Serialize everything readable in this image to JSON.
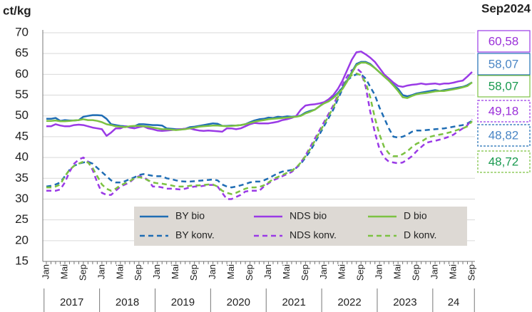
{
  "chart_data": {
    "type": "line",
    "y_label": "ct/kg",
    "annotation": "Sep2024",
    "categories": [
      "Jan",
      null,
      null,
      null,
      "Mai",
      null,
      null,
      null,
      "Sep",
      null,
      null,
      null,
      "Jan",
      null,
      null,
      null,
      "Mai",
      null,
      null,
      null,
      "Sep",
      null,
      null,
      null,
      "Jan",
      null,
      null,
      null,
      "Mai",
      null,
      null,
      null,
      "Sep",
      null,
      null,
      null,
      "Jan",
      null,
      null,
      null,
      "Mai",
      null,
      null,
      null,
      "Sep",
      null,
      null,
      null,
      "Jan",
      null,
      null,
      null,
      "Mai",
      null,
      null,
      null,
      "Sep",
      null,
      null,
      null,
      "Jan",
      null,
      null,
      null,
      "Mai",
      null,
      null,
      null,
      "Sep",
      null,
      null,
      null,
      "Jan",
      null,
      null,
      null,
      "Mai",
      null,
      null,
      null,
      "Sep",
      null,
      null,
      null,
      "Jan",
      null,
      null,
      null,
      "Mai",
      null,
      null,
      null,
      "Sep"
    ],
    "year_labels": [
      "2017",
      "2018",
      "2019",
      "2020",
      "2021",
      "2022",
      "2023",
      "24"
    ],
    "ylim": [
      15,
      70
    ],
    "yticks": [
      15,
      20,
      25,
      30,
      35,
      40,
      45,
      50,
      55,
      60,
      65,
      70
    ],
    "grid": true,
    "series": [
      {
        "name": "BY bio",
        "color": "#1f6db4",
        "dashed": false,
        "end_label": "58,07",
        "values": [
          49.3,
          49.3,
          49.5,
          48.8,
          49.0,
          48.9,
          48.9,
          49.0,
          49.8,
          50.0,
          50.2,
          50.2,
          50.1,
          49.3,
          48.0,
          47.8,
          47.6,
          47.5,
          47.4,
          47.5,
          48.0,
          48.0,
          47.9,
          47.8,
          47.8,
          47.7,
          47.0,
          46.9,
          46.8,
          46.8,
          46.9,
          47.3,
          47.4,
          47.6,
          47.8,
          48.0,
          48.2,
          48.1,
          47.6,
          47.6,
          47.7,
          47.7,
          47.8,
          48.0,
          48.5,
          48.9,
          49.2,
          49.3,
          49.6,
          49.5,
          49.8,
          49.7,
          49.9,
          49.8,
          49.9,
          50.1,
          50.8,
          51.2,
          51.5,
          52.3,
          53.2,
          53.8,
          54.5,
          55.5,
          56.8,
          58.5,
          60.5,
          62.5,
          63.0,
          63.0,
          62.5,
          61.5,
          60.5,
          59.5,
          58.5,
          57.5,
          56.5,
          55.0,
          54.7,
          55.0,
          55.4,
          55.6,
          55.8,
          56.0,
          56.2,
          56.0,
          56.2,
          56.4,
          56.6,
          56.8,
          57.0,
          57.4,
          58.07
        ]
      },
      {
        "name": "NDS bio",
        "color": "#9a3ae6",
        "dashed": false,
        "end_label": "60,58",
        "values": [
          47.5,
          47.5,
          48.0,
          47.7,
          47.5,
          47.5,
          47.8,
          47.9,
          47.8,
          47.5,
          47.2,
          47.0,
          46.8,
          45.2,
          46.0,
          47.0,
          47.0,
          47.5,
          47.2,
          47.0,
          47.3,
          47.5,
          47.0,
          46.8,
          46.5,
          46.4,
          46.5,
          46.6,
          46.7,
          46.8,
          46.9,
          47.0,
          46.7,
          46.5,
          46.4,
          46.5,
          46.4,
          46.3,
          46.2,
          47.0,
          47.0,
          46.8,
          47.0,
          47.5,
          48.0,
          48.3,
          48.2,
          48.2,
          48.2,
          48.4,
          48.6,
          49.0,
          49.2,
          49.5,
          50.0,
          51.5,
          52.5,
          52.7,
          52.8,
          53.0,
          53.3,
          54.0,
          55.0,
          56.5,
          58.5,
          61.0,
          63.5,
          65.3,
          65.5,
          64.8,
          64.0,
          63.0,
          61.5,
          60.0,
          59.0,
          58.0,
          57.2,
          57.0,
          57.3,
          57.5,
          57.6,
          57.8,
          57.6,
          57.7,
          57.8,
          57.6,
          57.8,
          57.8,
          58.0,
          58.3,
          58.5,
          59.5,
          60.58
        ]
      },
      {
        "name": "D bio",
        "color": "#7cc242",
        "dashed": false,
        "end_label": "58,07",
        "values": [
          48.8,
          48.8,
          48.9,
          48.7,
          48.7,
          48.8,
          48.9,
          49.0,
          49.2,
          49.0,
          49.0,
          48.8,
          48.5,
          48.0,
          47.8,
          47.5,
          47.4,
          47.3,
          47.5,
          47.6,
          47.6,
          47.5,
          47.4,
          47.2,
          47.0,
          46.8,
          46.8,
          46.7,
          46.6,
          46.7,
          46.8,
          47.0,
          47.2,
          47.4,
          47.5,
          47.6,
          47.7,
          47.7,
          47.6,
          47.5,
          47.6,
          47.7,
          47.8,
          48.0,
          48.3,
          48.6,
          48.8,
          49.0,
          49.2,
          49.3,
          49.4,
          49.5,
          49.6,
          49.7,
          49.8,
          50.0,
          50.6,
          51.0,
          51.5,
          52.3,
          53.0,
          53.5,
          54.3,
          55.3,
          56.5,
          58.3,
          60.3,
          62.2,
          62.8,
          62.8,
          62.3,
          61.5,
          60.5,
          59.5,
          58.5,
          57.3,
          56.0,
          54.5,
          54.3,
          54.8,
          55.2,
          55.4,
          55.5,
          55.7,
          55.9,
          56.0,
          56.0,
          56.2,
          56.4,
          56.6,
          56.9,
          57.2,
          58.07
        ]
      },
      {
        "name": "BY konv.",
        "color": "#1f6db4",
        "dashed": true,
        "end_label": "48,82",
        "values": [
          33.0,
          33.2,
          33.5,
          34.0,
          35.5,
          37.0,
          38.0,
          38.5,
          38.8,
          39.0,
          38.5,
          37.5,
          36.5,
          35.5,
          34.5,
          34.0,
          34.0,
          34.3,
          34.8,
          35.2,
          35.8,
          36.0,
          35.8,
          35.6,
          35.5,
          35.5,
          35.0,
          34.8,
          34.5,
          34.3,
          34.2,
          34.2,
          34.3,
          34.4,
          34.5,
          34.6,
          34.7,
          34.5,
          33.5,
          33.0,
          32.8,
          33.0,
          33.3,
          33.6,
          34.0,
          34.2,
          34.2,
          34.5,
          35.0,
          35.6,
          36.2,
          36.6,
          36.8,
          37.0,
          37.5,
          38.5,
          40.0,
          41.5,
          43.5,
          45.5,
          47.5,
          49.5,
          51.5,
          54.0,
          56.5,
          58.5,
          59.5,
          60.0,
          60.0,
          59.0,
          57.0,
          55.0,
          52.0,
          49.5,
          47.0,
          45.0,
          44.8,
          45.0,
          45.5,
          46.2,
          46.5,
          46.5,
          46.6,
          46.7,
          46.8,
          46.9,
          47.0,
          47.2,
          47.4,
          47.6,
          47.8,
          48.2,
          48.82
        ]
      },
      {
        "name": "NDS konv.",
        "color": "#9a3ae6",
        "dashed": true,
        "end_label": "49,18",
        "values": [
          32.0,
          32.0,
          32.0,
          32.3,
          34.0,
          36.5,
          38.5,
          39.5,
          40.0,
          39.0,
          37.0,
          34.0,
          31.5,
          31.0,
          31.0,
          32.0,
          33.0,
          33.5,
          34.0,
          35.0,
          35.5,
          35.3,
          34.5,
          33.0,
          33.0,
          32.8,
          32.5,
          32.5,
          32.4,
          32.3,
          32.5,
          32.8,
          33.0,
          33.0,
          33.2,
          33.4,
          33.4,
          33.0,
          31.5,
          30.0,
          30.0,
          30.5,
          31.0,
          31.8,
          32.0,
          32.0,
          32.0,
          33.0,
          33.8,
          34.5,
          35.0,
          35.5,
          36.0,
          36.5,
          37.5,
          38.8,
          40.5,
          42.5,
          44.5,
          46.5,
          48.5,
          50.5,
          52.5,
          55.0,
          57.5,
          59.5,
          61.0,
          61.5,
          60.5,
          57.0,
          51.0,
          46.0,
          42.0,
          40.0,
          39.0,
          38.8,
          38.6,
          38.8,
          39.5,
          40.3,
          41.5,
          42.5,
          43.5,
          43.8,
          44.0,
          44.3,
          44.6,
          45.0,
          45.5,
          46.3,
          47.0,
          47.8,
          49.18
        ]
      },
      {
        "name": "D konv.",
        "color": "#7cc242",
        "dashed": true,
        "end_label": "48,72",
        "values": [
          32.8,
          32.8,
          33.0,
          33.5,
          35.5,
          37.0,
          38.0,
          38.5,
          39.0,
          38.8,
          37.5,
          35.5,
          33.5,
          32.5,
          32.0,
          32.5,
          33.3,
          33.8,
          34.3,
          35.0,
          35.3,
          35.0,
          34.5,
          34.0,
          33.8,
          33.7,
          33.5,
          33.3,
          33.0,
          33.0,
          33.0,
          33.2,
          33.3,
          33.3,
          33.4,
          33.5,
          33.5,
          33.0,
          32.0,
          31.5,
          31.2,
          31.5,
          32.0,
          32.5,
          32.8,
          32.8,
          32.9,
          33.3,
          34.0,
          34.8,
          35.3,
          35.8,
          36.3,
          36.8,
          37.6,
          38.8,
          40.3,
          42.0,
          44.0,
          46.0,
          48.0,
          50.0,
          52.0,
          54.5,
          57.0,
          58.8,
          59.8,
          60.2,
          59.8,
          58.0,
          54.5,
          49.5,
          45.5,
          42.5,
          41.0,
          40.3,
          40.3,
          40.8,
          41.5,
          42.5,
          43.3,
          43.8,
          44.5,
          45.0,
          45.3,
          45.5,
          45.7,
          46.0,
          46.3,
          46.7,
          47.0,
          47.5,
          48.72
        ]
      }
    ]
  }
}
